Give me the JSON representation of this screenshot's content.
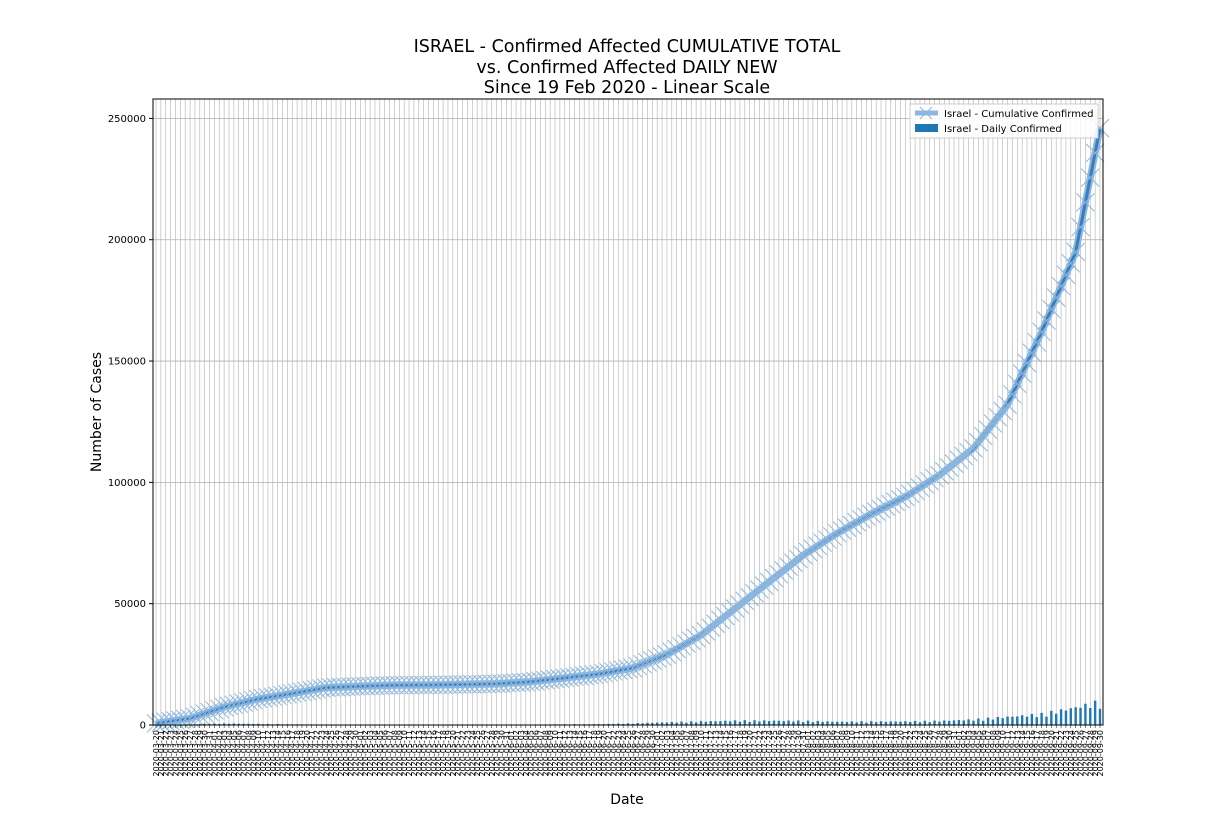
{
  "chart_data": {
    "type": "line",
    "title": [
      "ISRAEL - Confirmed Affected CUMULATIVE TOTAL",
      "vs. Confirmed Affected DAILY NEW",
      "Since 19 Feb 2020 - Linear Scale"
    ],
    "xlabel": "Date",
    "ylabel": "Number of Cases",
    "x_range": [
      "2020-03-20",
      "2020-09-30"
    ],
    "ylim": [
      0,
      258000
    ],
    "yticks": [
      0,
      50000,
      100000,
      150000,
      200000,
      250000
    ],
    "ytick_labels": [
      "0",
      "50000",
      "100000",
      "150000",
      "200000",
      "250000"
    ],
    "grid": true,
    "legend_position": "top-right",
    "legend": [
      "Israel - Cumulative Confirmed",
      "Israel - Daily Confirmed"
    ],
    "colors": {
      "cumulative": "#3a7dbf",
      "cumulative_glow": "#8cb7de",
      "daily": "#1f77b4",
      "grid": "#b0b0b0"
    },
    "series": [
      {
        "name": "Israel - Cumulative Confirmed",
        "type": "line",
        "marker": "x",
        "x": [
          "2020-03-20",
          "2020-03-27",
          "2020-04-03",
          "2020-04-10",
          "2020-04-17",
          "2020-04-24",
          "2020-05-01",
          "2020-05-08",
          "2020-05-15",
          "2020-05-22",
          "2020-05-29",
          "2020-06-05",
          "2020-06-12",
          "2020-06-19",
          "2020-06-26",
          "2020-07-03",
          "2020-07-10",
          "2020-07-17",
          "2020-07-24",
          "2020-07-31",
          "2020-08-07",
          "2020-08-14",
          "2020-08-21",
          "2020-08-28",
          "2020-09-04",
          "2020-09-11",
          "2020-09-18",
          "2020-09-25",
          "2020-09-30"
        ],
        "values": [
          700,
          2700,
          7400,
          10700,
          13000,
          15400,
          16000,
          16400,
          16500,
          16700,
          17000,
          17800,
          19400,
          21000,
          23500,
          29000,
          37000,
          48000,
          59000,
          70000,
          79000,
          87000,
          94000,
          103000,
          114000,
          132000,
          162000,
          195000,
          246000
        ]
      },
      {
        "name": "Israel - Daily Confirmed",
        "type": "bar",
        "x": [
          "2020-03-20",
          "2020-03-27",
          "2020-04-03",
          "2020-04-10",
          "2020-04-17",
          "2020-04-24",
          "2020-05-01",
          "2020-05-08",
          "2020-05-15",
          "2020-05-22",
          "2020-05-29",
          "2020-06-05",
          "2020-06-12",
          "2020-06-19",
          "2020-06-26",
          "2020-07-03",
          "2020-07-10",
          "2020-07-17",
          "2020-07-24",
          "2020-07-31",
          "2020-08-07",
          "2020-08-14",
          "2020-08-21",
          "2020-08-28",
          "2020-09-04",
          "2020-09-11",
          "2020-09-18",
          "2020-09-25",
          "2020-09-30"
        ],
        "values": [
          100,
          350,
          550,
          400,
          250,
          150,
          80,
          50,
          30,
          40,
          60,
          150,
          250,
          300,
          600,
          1000,
          1300,
          1600,
          1600,
          1500,
          1200,
          1300,
          1300,
          1500,
          2000,
          3000,
          4000,
          6500,
          8500
        ]
      }
    ]
  }
}
